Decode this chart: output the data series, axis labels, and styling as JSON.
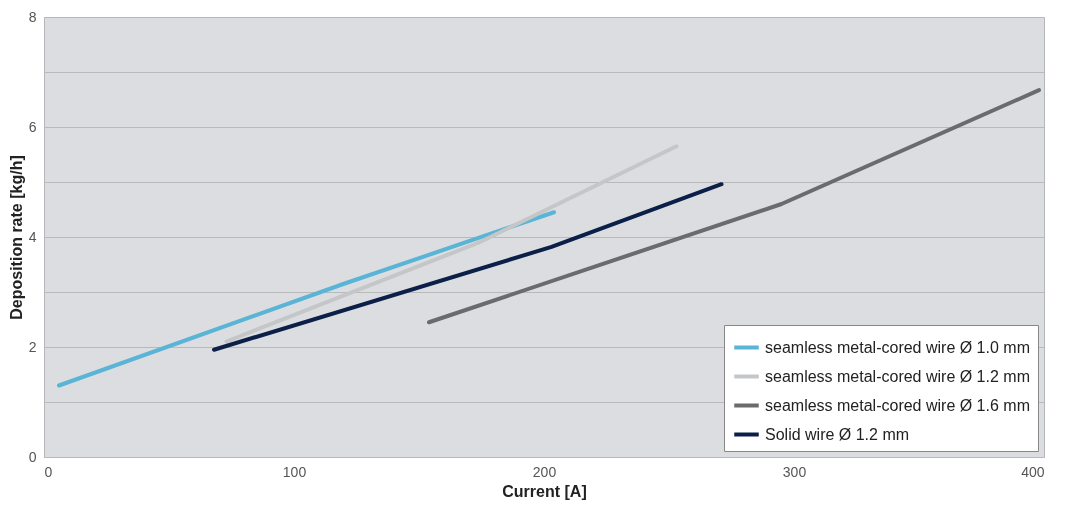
{
  "chart_data": {
    "type": "line",
    "xlabel": "Current [A]",
    "ylabel": "Deposition rate [kg/h]",
    "xlim": [
      0,
      400
    ],
    "xticks": [
      0,
      100,
      200,
      300,
      400
    ],
    "ylim": [
      0,
      8
    ],
    "yticks": [
      0,
      {
        "value": 1,
        "label": null
      },
      2,
      {
        "value": 3,
        "label": null
      },
      4,
      {
        "value": 5,
        "label": null
      },
      6,
      {
        "value": 7,
        "label": null
      },
      8
    ],
    "grid": "y",
    "legend": "bottom right",
    "line_style": "solid",
    "series": [
      {
        "name": "seamless metal-cored wire Ø 1.0 mm",
        "color": "#5ab4d6",
        "x": [
          6,
          120,
          204
        ],
        "values": [
          1.3,
          3.15,
          4.45
        ]
      },
      {
        "name": "seamless metal-cored wire Ø 1.2 mm",
        "color": "#c4c6c8",
        "x": [
          73,
          174,
          253
        ],
        "values": [
          2.1,
          3.9,
          5.65
        ]
      },
      {
        "name": "seamless metal-cored wire Ø 1.6 mm",
        "color": "#6a6b6d",
        "x": [
          154,
          295,
          398
        ],
        "values": [
          2.45,
          4.6,
          6.67
        ]
      },
      {
        "name": "Solid wire Ø 1.2 mm",
        "color": "#0b1f48",
        "x": [
          68,
          203,
          271
        ],
        "values": [
          1.95,
          3.82,
          4.96
        ]
      }
    ]
  }
}
